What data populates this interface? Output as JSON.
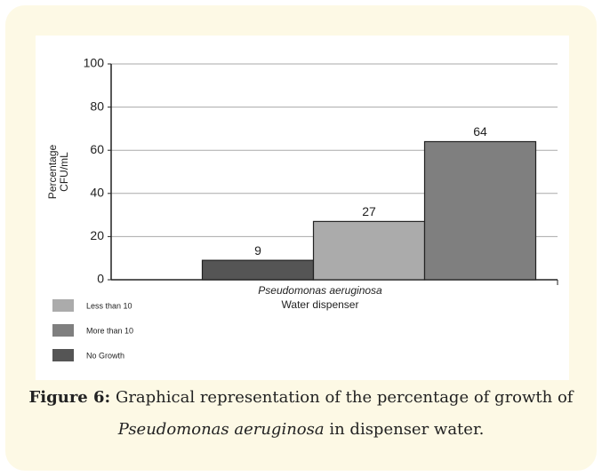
{
  "chart_data": {
    "type": "bar",
    "categories": [
      "Pseudomonas aeruginosa"
    ],
    "x_label": "Water dispenser",
    "y_label": [
      "Percentage",
      "CFU/mL"
    ],
    "series": [
      {
        "name": "No Growth",
        "color": "#555555",
        "values": [
          9
        ]
      },
      {
        "name": "Less than 10",
        "color": "#ababab",
        "values": [
          27
        ]
      },
      {
        "name": "More than 10",
        "color": "#7f7f7f",
        "values": [
          64
        ]
      }
    ],
    "ylim": [
      0,
      100
    ],
    "yticks": [
      0,
      20,
      40,
      60,
      80,
      100
    ],
    "grid": true
  },
  "caption": {
    "label": "Figure 6:",
    "text1": "Graphical representation of the percentage of growth of",
    "species": "Pseudomonas aeruginosa",
    "text2": "in dispenser water."
  }
}
